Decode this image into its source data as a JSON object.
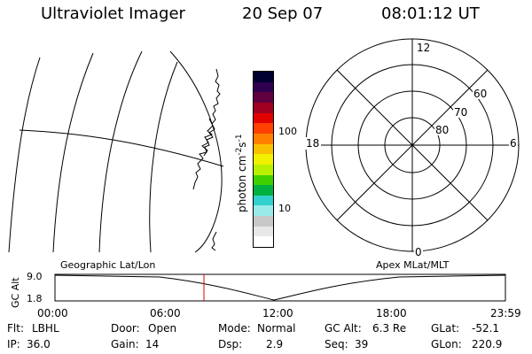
{
  "header": {
    "instrument": "Ultraviolet Imager",
    "date": "20 Sep 07",
    "time": "08:01:12 UT"
  },
  "colorbar": {
    "unit_label": "photon cm",
    "unit_sup": "-2",
    "unit_s": "s",
    "unit_sup2": "-1",
    "ticks": [
      "100",
      "10"
    ],
    "colors": [
      "#ffffff",
      "#e8e8e8",
      "#c8c8c8",
      "#9aeaea",
      "#33d0d0",
      "#00b040",
      "#40d000",
      "#b8f000",
      "#f0f000",
      "#f8c000",
      "#ff8000",
      "#ff4000",
      "#e00000",
      "#a00020",
      "#600040",
      "#300050",
      "#000030"
    ]
  },
  "polar_plot": {
    "lat_labels": [
      "80",
      "70",
      "60"
    ],
    "mlt_labels": {
      "top": "12",
      "bottom": "0",
      "left": "18",
      "right": "6"
    }
  },
  "timeline": {
    "axis_label": "GC Alt",
    "y_ticks": [
      "9.0",
      "1.8"
    ],
    "left_caption": "Geographic Lat/Lon",
    "right_caption": "Apex  MLat/MLT",
    "x_ticks": [
      "00:00",
      "06:00",
      "12:00",
      "18:00",
      "23:59"
    ],
    "marker_color": "#e00000"
  },
  "footer": {
    "row1": [
      {
        "label": "Flt:",
        "value": "LBHL"
      },
      {
        "label": "Door:",
        "value": "Open"
      },
      {
        "label": "Mode:",
        "value": "Normal"
      },
      {
        "label": "GC Alt:",
        "value": "6.3 Re"
      },
      {
        "label": "GLat:",
        "value": "-52.1"
      }
    ],
    "row2": [
      {
        "label": "IP:",
        "value": "36.0"
      },
      {
        "label": "Gain:",
        "value": "14"
      },
      {
        "label": "Dsp:",
        "value": "2.9"
      },
      {
        "label": "Seq:",
        "value": "39"
      },
      {
        "label": "GLon:",
        "value": "220.9"
      }
    ]
  }
}
